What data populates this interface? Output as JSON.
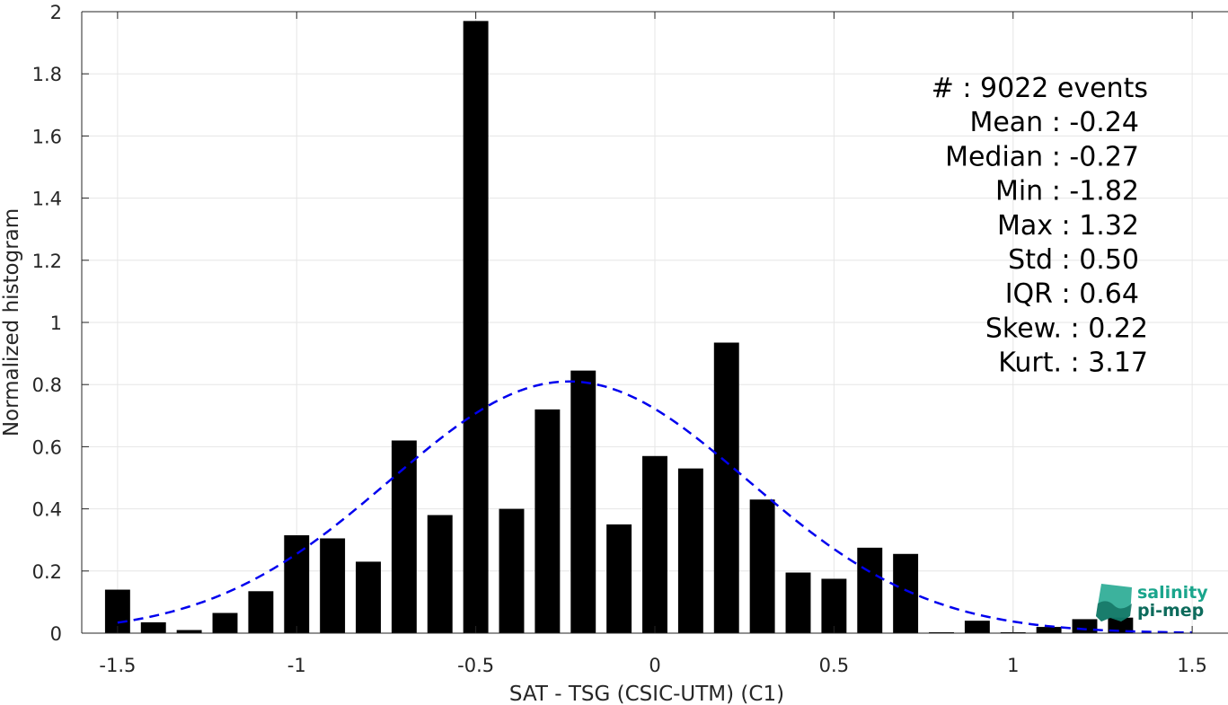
{
  "chart_data": {
    "type": "bar",
    "xlabel": "SAT - TSG (CSIC-UTM) (C1)",
    "ylabel": "Normalized histogram",
    "xlim": [
      -1.6,
      1.6
    ],
    "ylim": [
      0,
      2
    ],
    "xticks": [
      -1.5,
      -1,
      -0.5,
      0,
      0.5,
      1,
      1.5
    ],
    "xtick_labels": [
      "-1.5",
      "-1",
      "-0.5",
      "0",
      "0.5",
      "1",
      "1.5"
    ],
    "yticks": [
      0,
      0.2,
      0.4,
      0.6,
      0.8,
      1,
      1.2,
      1.4,
      1.6,
      1.8,
      2
    ],
    "ytick_labels": [
      "0",
      "0.2",
      "0.4",
      "0.6",
      "0.8",
      "1",
      "1.2",
      "1.4",
      "1.6",
      "1.8",
      "2"
    ],
    "grid": true,
    "bar_color": "#000000",
    "bar_width": 0.07,
    "bins": [
      {
        "x": -1.5,
        "y": 0.14
      },
      {
        "x": -1.4,
        "y": 0.035
      },
      {
        "x": -1.3,
        "y": 0.01
      },
      {
        "x": -1.2,
        "y": 0.065
      },
      {
        "x": -1.1,
        "y": 0.135
      },
      {
        "x": -1.0,
        "y": 0.315
      },
      {
        "x": -0.9,
        "y": 0.305
      },
      {
        "x": -0.8,
        "y": 0.23
      },
      {
        "x": -0.7,
        "y": 0.62
      },
      {
        "x": -0.6,
        "y": 0.38
      },
      {
        "x": -0.5,
        "y": 1.97
      },
      {
        "x": -0.4,
        "y": 0.4
      },
      {
        "x": -0.3,
        "y": 0.72
      },
      {
        "x": -0.2,
        "y": 0.845
      },
      {
        "x": -0.1,
        "y": 0.35
      },
      {
        "x": 0.0,
        "y": 0.57
      },
      {
        "x": 0.1,
        "y": 0.53
      },
      {
        "x": 0.2,
        "y": 0.935
      },
      {
        "x": 0.3,
        "y": 0.43
      },
      {
        "x": 0.4,
        "y": 0.195
      },
      {
        "x": 0.5,
        "y": 0.175
      },
      {
        "x": 0.6,
        "y": 0.275
      },
      {
        "x": 0.7,
        "y": 0.255
      },
      {
        "x": 0.8,
        "y": 0.003
      },
      {
        "x": 0.9,
        "y": 0.04
      },
      {
        "x": 1.0,
        "y": 0.003
      },
      {
        "x": 1.1,
        "y": 0.02
      },
      {
        "x": 1.2,
        "y": 0.045
      },
      {
        "x": 1.3,
        "y": 0.05
      }
    ],
    "fit": {
      "type": "gaussian",
      "mean": -0.24,
      "std": 0.5,
      "peak": 0.81,
      "x_range": [
        -1.5,
        1.5
      ],
      "color": "#0000ee",
      "line_style": "dashed"
    },
    "stats": [
      {
        "label": "#  : 9022 events"
      },
      {
        "label": "Mean : -0.24"
      },
      {
        "label": "Median : -0.27"
      },
      {
        "label": "Min : -1.82"
      },
      {
        "label": "Max : 1.32"
      },
      {
        "label": "Std : 0.50"
      },
      {
        "label": "IQR : 0.64"
      },
      {
        "label": "Skew. : 0.22"
      },
      {
        "label": "Kurt. : 3.17"
      }
    ]
  },
  "logo": {
    "line1": "salinity",
    "line2": "pi-mep",
    "color_primary": "#1aa58c",
    "color_dark": "#0d6b5c"
  }
}
